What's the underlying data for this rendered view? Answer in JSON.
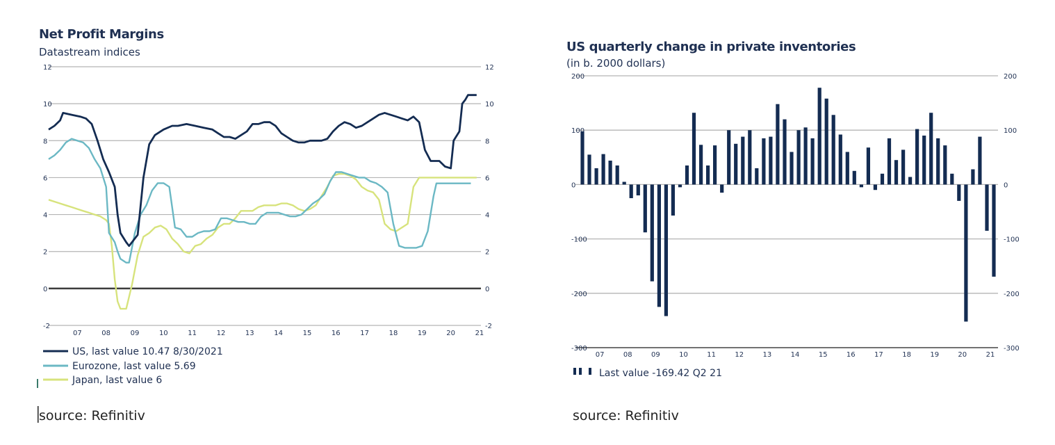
{
  "chart_data": [
    {
      "type": "line",
      "title": "Net Profit Margins",
      "subtitle": "Datastream indices",
      "x_tick_labels": [
        "07",
        "08",
        "09",
        "10",
        "11",
        "12",
        "13",
        "14",
        "15",
        "16",
        "17",
        "18",
        "19",
        "20",
        "21"
      ],
      "ylim": [
        -2,
        12
      ],
      "y_ticks": [
        -2,
        0,
        2,
        4,
        6,
        8,
        10,
        12
      ],
      "grid": true,
      "legend_position": "bottom-left",
      "colors": {
        "US": "#142c52",
        "Eurozone": "#6bb8c4",
        "Japan": "#d7e37c",
        "zero_line": "#3c3c3c",
        "grid": "#b4b4b4"
      },
      "series": [
        {
          "name": "US, last value 10.47 8/30/2021",
          "x": [
            2006.5,
            2006.7,
            2006.9,
            2007.0,
            2007.3,
            2007.6,
            2007.8,
            2008.0,
            2008.2,
            2008.4,
            2008.6,
            2008.8,
            2008.9,
            2009.0,
            2009.2,
            2009.3,
            2009.4,
            2009.6,
            2009.8,
            2010.0,
            2010.2,
            2010.5,
            2010.8,
            2011.0,
            2011.3,
            2011.6,
            2011.9,
            2012.2,
            2012.4,
            2012.6,
            2012.8,
            2013.0,
            2013.2,
            2013.4,
            2013.6,
            2013.8,
            2014.0,
            2014.2,
            2014.4,
            2014.6,
            2014.8,
            2015.0,
            2015.2,
            2015.4,
            2015.6,
            2015.8,
            2016.0,
            2016.2,
            2016.4,
            2016.6,
            2016.8,
            2017.0,
            2017.2,
            2017.4,
            2017.6,
            2017.8,
            2018.0,
            2018.2,
            2018.4,
            2018.6,
            2018.8,
            2019.0,
            2019.2,
            2019.4,
            2019.6,
            2019.8,
            2020.0,
            2020.1,
            2020.3,
            2020.5,
            2020.6,
            2020.8,
            2020.9,
            2021.0,
            2021.1,
            2021.3,
            2021.4
          ],
          "values": [
            8.6,
            8.8,
            9.1,
            9.5,
            9.4,
            9.3,
            9.2,
            8.9,
            8.0,
            7.0,
            6.3,
            5.5,
            4.0,
            3.0,
            2.5,
            2.3,
            2.5,
            2.9,
            6.0,
            7.8,
            8.3,
            8.6,
            8.8,
            8.8,
            8.9,
            8.8,
            8.7,
            8.6,
            8.4,
            8.2,
            8.2,
            8.1,
            8.3,
            8.5,
            8.9,
            8.9,
            9.0,
            9.0,
            8.8,
            8.4,
            8.2,
            8.0,
            7.9,
            7.9,
            8.0,
            8.0,
            8.0,
            8.1,
            8.5,
            8.8,
            9.0,
            8.9,
            8.7,
            8.8,
            9.0,
            9.2,
            9.4,
            9.5,
            9.4,
            9.3,
            9.2,
            9.1,
            9.3,
            9.0,
            7.5,
            6.9,
            6.9,
            6.9,
            6.6,
            6.5,
            8.0,
            8.5,
            10.0,
            10.2,
            10.47,
            10.47,
            10.47
          ]
        },
        {
          "name": "Eurozone, last value 5.69",
          "x": [
            2006.5,
            2006.7,
            2006.9,
            2007.1,
            2007.3,
            2007.5,
            2007.7,
            2007.9,
            2008.1,
            2008.3,
            2008.5,
            2008.6,
            2008.8,
            2008.9,
            2009.0,
            2009.2,
            2009.3,
            2009.5,
            2009.7,
            2009.9,
            2010.1,
            2010.3,
            2010.5,
            2010.7,
            2010.9,
            2011.1,
            2011.3,
            2011.5,
            2011.7,
            2011.9,
            2012.1,
            2012.3,
            2012.5,
            2012.7,
            2012.9,
            2013.1,
            2013.3,
            2013.5,
            2013.7,
            2013.9,
            2014.1,
            2014.3,
            2014.5,
            2014.7,
            2014.9,
            2015.1,
            2015.3,
            2015.5,
            2015.7,
            2015.9,
            2016.1,
            2016.3,
            2016.5,
            2016.7,
            2016.9,
            2017.1,
            2017.3,
            2017.5,
            2017.7,
            2017.9,
            2018.1,
            2018.3,
            2018.5,
            2018.7,
            2018.9,
            2019.1,
            2019.3,
            2019.5,
            2019.7,
            2019.9,
            2020.0,
            2020.2,
            2020.4,
            2020.6,
            2020.8,
            2021.0,
            2021.2
          ],
          "values": [
            7.0,
            7.2,
            7.5,
            7.9,
            8.1,
            8.0,
            7.9,
            7.6,
            7.0,
            6.5,
            5.5,
            3.0,
            2.5,
            2.0,
            1.6,
            1.4,
            1.4,
            3.0,
            4.0,
            4.5,
            5.3,
            5.7,
            5.7,
            5.5,
            3.3,
            3.2,
            2.8,
            2.8,
            3.0,
            3.1,
            3.1,
            3.2,
            3.8,
            3.8,
            3.7,
            3.6,
            3.6,
            3.5,
            3.5,
            3.9,
            4.1,
            4.1,
            4.1,
            4.0,
            3.9,
            3.9,
            4.0,
            4.3,
            4.6,
            4.8,
            5.1,
            5.8,
            6.3,
            6.3,
            6.2,
            6.1,
            6.0,
            6.0,
            5.8,
            5.7,
            5.5,
            5.2,
            3.5,
            2.3,
            2.2,
            2.2,
            2.2,
            2.3,
            3.1,
            5.0,
            5.69,
            5.69,
            5.69,
            5.69,
            5.69,
            5.69,
            5.69
          ]
        },
        {
          "name": "Japan, last value 6",
          "x": [
            2006.5,
            2006.7,
            2006.9,
            2007.1,
            2007.3,
            2007.5,
            2007.7,
            2007.9,
            2008.1,
            2008.3,
            2008.5,
            2008.6,
            2008.7,
            2008.8,
            2008.9,
            2009.0,
            2009.1,
            2009.2,
            2009.4,
            2009.6,
            2009.8,
            2010.0,
            2010.2,
            2010.4,
            2010.6,
            2010.8,
            2011.0,
            2011.2,
            2011.4,
            2011.6,
            2011.8,
            2012.0,
            2012.2,
            2012.4,
            2012.6,
            2012.8,
            2013.0,
            2013.2,
            2013.4,
            2013.6,
            2013.8,
            2014.0,
            2014.2,
            2014.4,
            2014.6,
            2014.8,
            2015.0,
            2015.2,
            2015.4,
            2015.6,
            2015.8,
            2016.0,
            2016.2,
            2016.4,
            2016.6,
            2016.8,
            2017.0,
            2017.2,
            2017.4,
            2017.6,
            2017.8,
            2018.0,
            2018.2,
            2018.4,
            2018.6,
            2018.8,
            2019.0,
            2019.2,
            2019.4,
            2019.6,
            2019.8,
            2020.0,
            2020.2,
            2020.4,
            2020.6,
            2020.8,
            2021.0,
            2021.2,
            2021.4
          ],
          "values": [
            4.8,
            4.7,
            4.6,
            4.5,
            4.4,
            4.3,
            4.2,
            4.1,
            4.0,
            3.9,
            3.7,
            3.5,
            2.3,
            0.5,
            -0.7,
            -1.1,
            -1.1,
            -1.1,
            0.2,
            1.8,
            2.8,
            3.0,
            3.3,
            3.4,
            3.2,
            2.7,
            2.4,
            2.0,
            1.9,
            2.3,
            2.4,
            2.7,
            2.9,
            3.3,
            3.5,
            3.5,
            3.8,
            4.2,
            4.2,
            4.2,
            4.4,
            4.5,
            4.5,
            4.5,
            4.6,
            4.6,
            4.5,
            4.3,
            4.2,
            4.3,
            4.5,
            5.0,
            5.5,
            6.1,
            6.2,
            6.2,
            6.1,
            5.9,
            5.5,
            5.3,
            5.2,
            4.8,
            3.5,
            3.2,
            3.1,
            3.3,
            3.5,
            5.5,
            6.0,
            6.0,
            6.0,
            6.0,
            6.0,
            6.0,
            6.0,
            6.0,
            6.0,
            6.0,
            6.0
          ]
        }
      ]
    },
    {
      "type": "bar",
      "title": "US quarterly change in private inventories",
      "subtitle": "(in b. 2000 dollars)",
      "x_tick_labels": [
        "07",
        "08",
        "09",
        "10",
        "11",
        "12",
        "13",
        "14",
        "15",
        "16",
        "17",
        "18",
        "19",
        "20",
        "21"
      ],
      "ylim": [
        -300,
        200
      ],
      "y_ticks": [
        -300,
        -200,
        -100,
        0,
        100,
        200
      ],
      "grid": true,
      "legend_position": "bottom-left",
      "colors": {
        "bars": "#142c52",
        "grid": "#b4b4b4"
      },
      "legend_label": "Last value -169.42 Q2 21",
      "series": [
        {
          "name": "Last value -169.42 Q2 21",
          "values": [
            98,
            55,
            30,
            56,
            44,
            35,
            5,
            -25,
            -20,
            -88,
            -178,
            -225,
            -242,
            -57,
            -5,
            35,
            132,
            73,
            35,
            72,
            -15,
            100,
            75,
            88,
            100,
            30,
            85,
            88,
            148,
            120,
            60,
            100,
            105,
            85,
            178,
            158,
            128,
            92,
            60,
            25,
            -5,
            68,
            -10,
            20,
            85,
            45,
            64,
            14,
            102,
            90,
            132,
            85,
            72,
            20,
            -30,
            -252,
            28,
            88,
            -85,
            -169.42
          ]
        }
      ]
    }
  ],
  "sources": [
    "source: Refinitiv",
    "source: Refinitiv"
  ]
}
